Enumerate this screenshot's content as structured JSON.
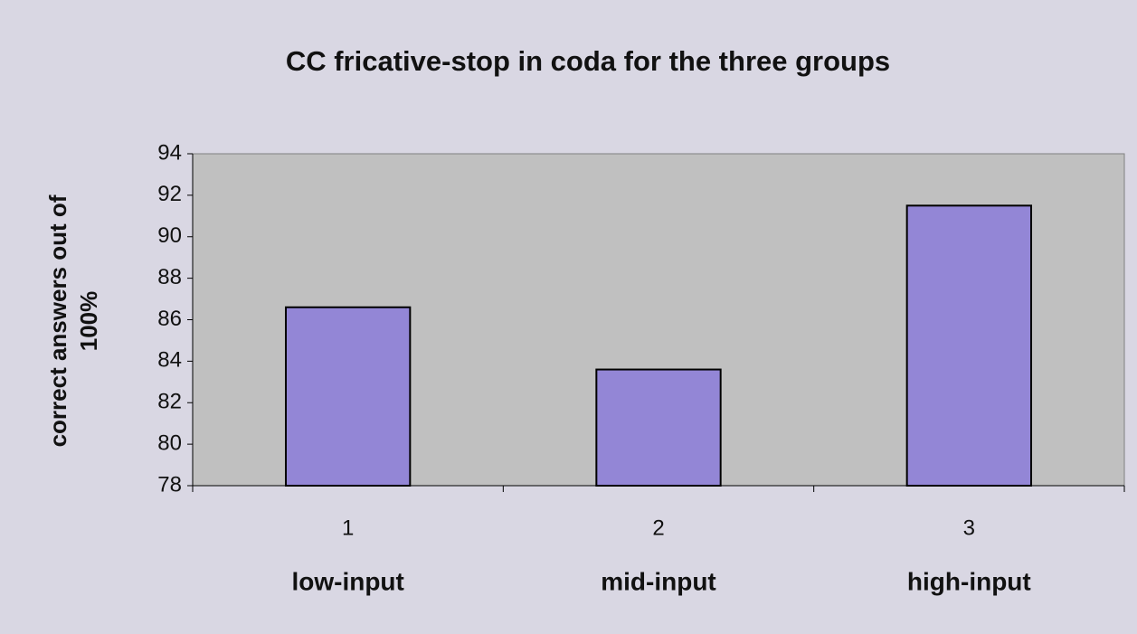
{
  "chart_data": {
    "type": "bar",
    "title": "CC fricative-stop in coda for the three groups",
    "ylabel": [
      "correct answers out of",
      "100%"
    ],
    "categories": [
      "1",
      "2",
      "3"
    ],
    "group_labels": [
      "low-input",
      "mid-input",
      "high-input"
    ],
    "values": [
      86.6,
      83.6,
      91.5
    ],
    "color": "#9386d6",
    "ylim": [
      78,
      94
    ],
    "yticks": [
      78,
      80,
      82,
      84,
      86,
      88,
      90,
      92,
      94
    ],
    "grid": false
  }
}
